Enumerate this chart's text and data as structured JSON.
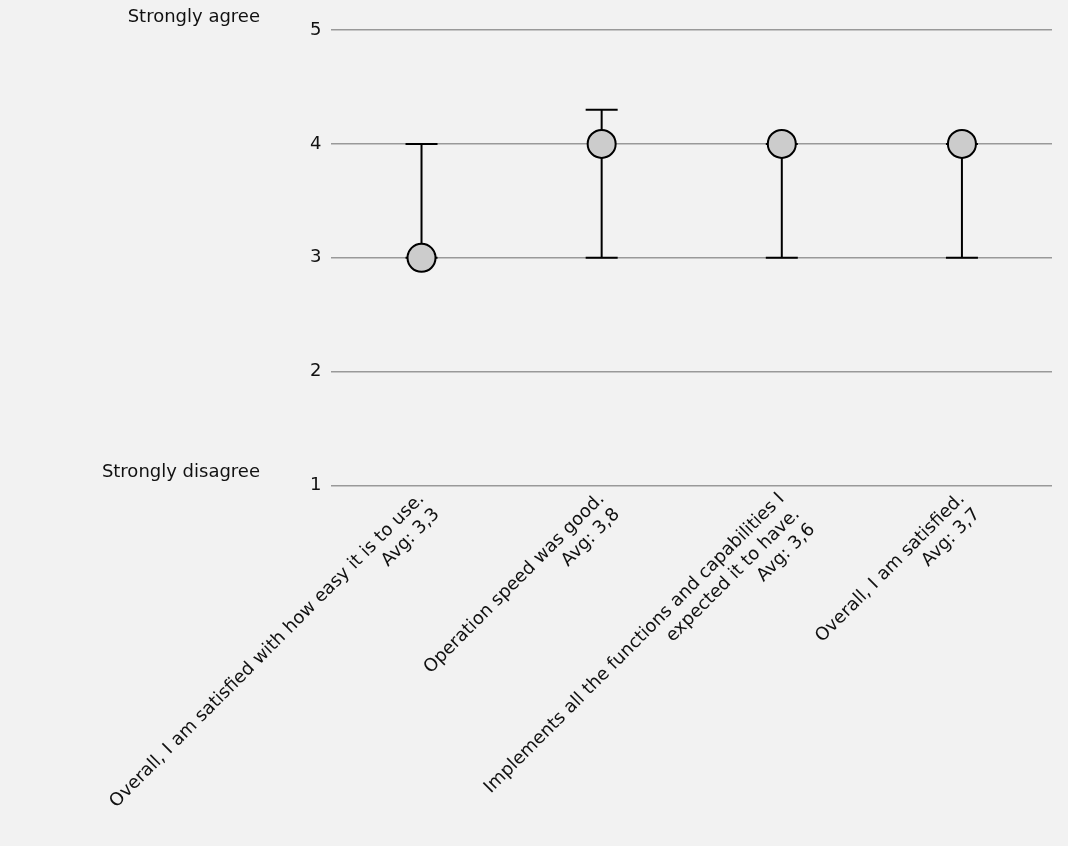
{
  "chart_data": {
    "type": "scatter",
    "categories": [
      "Overall, I am satisfied with how easy it is to use.\nAvg: 3,3",
      "Operation speed was good.\nAvg: 3,8",
      "Implements all the functions and capabilities I\nexpected it to have.\nAvg: 3,6",
      "Overall, I am satisfied.\nAvg: 3,7"
    ],
    "series": [
      {
        "color": "#cccccc",
        "values": [
          3,
          4,
          4,
          4
        ],
        "errors": [
          [
            3,
            4
          ],
          [
            3,
            4.3
          ],
          [
            3,
            4
          ],
          [
            3,
            4
          ]
        ]
      }
    ],
    "ylim": [
      1,
      5
    ],
    "yticks": [
      1,
      2,
      3,
      4,
      5
    ],
    "grid": "y",
    "marker": "circle",
    "legend": false,
    "annotations": [
      "Strongly agree",
      "Strongly disagree"
    ]
  }
}
